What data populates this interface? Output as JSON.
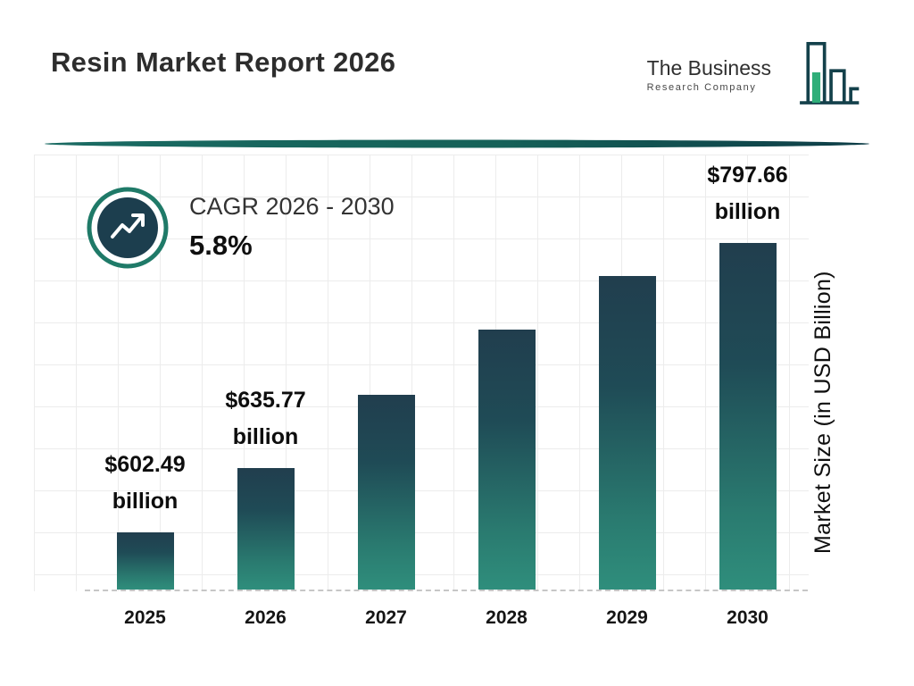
{
  "header": {
    "title": "Resin Market Report 2026"
  },
  "logo": {
    "line1": "The Business",
    "line2": "Research Company"
  },
  "cagr": {
    "label": "CAGR 2026 - 2030",
    "value": "5.8%"
  },
  "chart_data": {
    "type": "bar",
    "title": "Resin Market Report 2026",
    "xlabel": "",
    "ylabel": "Market Size (in USD Billion)",
    "categories": [
      "2025",
      "2026",
      "2027",
      "2028",
      "2029",
      "2030"
    ],
    "values": [
      602.49,
      635.77,
      673,
      712,
      753,
      797.66
    ],
    "value_labels": [
      {
        "amount": "$602.49",
        "unit": "billion"
      },
      {
        "amount": "$635.77",
        "unit": "billion"
      },
      null,
      null,
      null,
      {
        "amount": "$797.66",
        "unit": "billion"
      }
    ],
    "bar_heights_pct": [
      13.3,
      28.1,
      45.0,
      60.0,
      72.3,
      80.1
    ],
    "grid": true,
    "baseline_style": "dashed",
    "legend": "none",
    "annotations": [
      "CAGR 2026 - 2030",
      "5.8%"
    ]
  },
  "colors": {
    "bar_gradient_top": "#213e4e",
    "bar_gradient_bottom": "#2f8e7c",
    "accent_teal": "#1a6b63",
    "badge_fill": "#1c3e4e",
    "badge_ring": "#1f7a68",
    "logo_green": "#2fae79",
    "logo_outline": "#14414b",
    "grid_line": "#ececec",
    "title_text": "#2d2d2d"
  }
}
